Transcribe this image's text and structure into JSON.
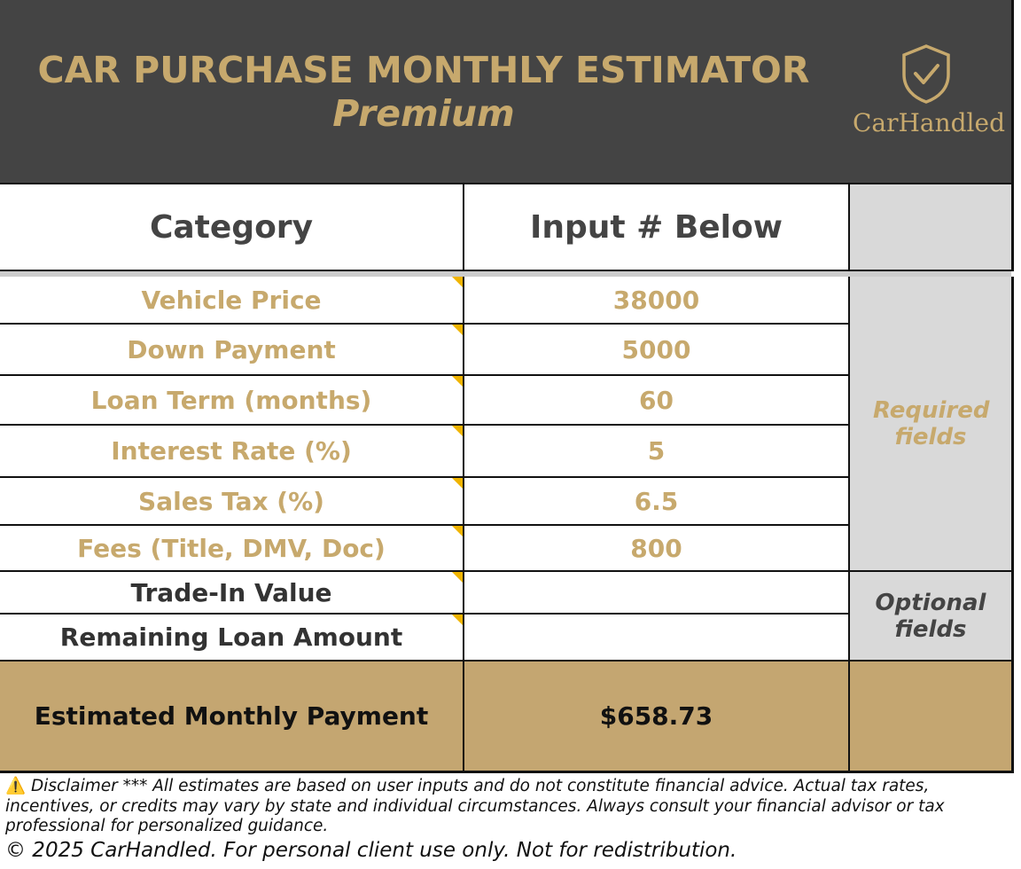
{
  "header": {
    "title": "CAR PURCHASE MONTHLY ESTIMATOR",
    "subtitle": "Premium",
    "logo_text": "CarHandled"
  },
  "table": {
    "col_category": "Category",
    "col_input": "Input # Below",
    "rows": [
      {
        "label": "Vehicle Price",
        "value": "38000"
      },
      {
        "label": "Down Payment",
        "value": "5000"
      },
      {
        "label": "Loan Term (months)",
        "value": "60"
      },
      {
        "label": "Interest Rate (%)",
        "value": "5"
      },
      {
        "label": "Sales Tax (%)",
        "value": "6.5"
      },
      {
        "label": "Fees (Title, DMV, Doc)",
        "value": "800"
      },
      {
        "label": "Trade-In Value",
        "value": ""
      },
      {
        "label": "Remaining Loan Amount",
        "value": ""
      }
    ],
    "required_note": "Required fields",
    "optional_note": "Optional fields",
    "result_label": "Estimated Monthly Payment",
    "result_value": "$658.73"
  },
  "footer": {
    "disclaimer_icon": "⚠️",
    "disclaimer": "Disclaimer *** All estimates are based on user inputs and do not constitute financial advice. Actual tax rates, incentives, or credits may vary by state and individual circumstances. Always consult your financial advisor or tax professional for personalized guidance.",
    "copyright": "© 2025 CarHandled. For personal client use only. Not for redistribution."
  },
  "colors": {
    "header_bg": "#444444",
    "gold": "#c7a96d",
    "result_bg": "#c4a671",
    "side_bg": "#d9d9d9",
    "marker": "#f0b400"
  }
}
